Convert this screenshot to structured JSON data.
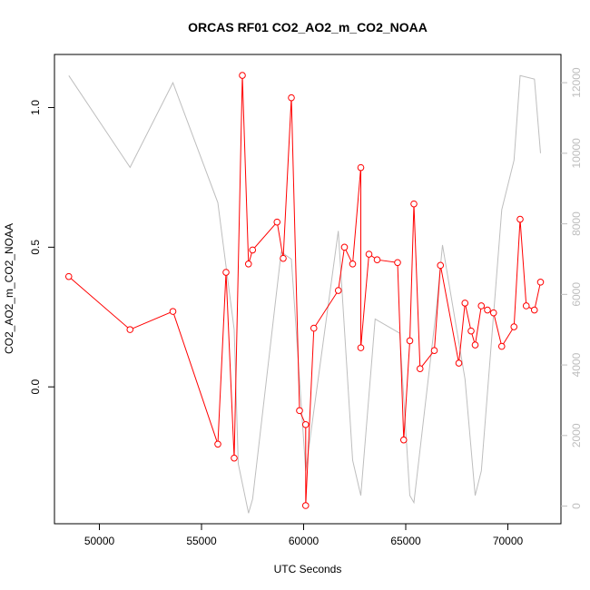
{
  "chart_data": {
    "type": "line",
    "title": "ORCAS RF01 CO2_AO2_m_CO2_NOAA",
    "xlabel": "UTC Seconds",
    "ylabel": "CO2_AO2_m_CO2_NOAA",
    "xlim": [
      47800,
      72600
    ],
    "ylim": [
      -0.49,
      1.19
    ],
    "y2lim": [
      -500,
      12800
    ],
    "x_ticks": [
      50000,
      55000,
      60000,
      65000,
      70000
    ],
    "y_ticks": [
      0.0,
      0.5,
      1.0
    ],
    "y2_ticks": [
      0,
      2000,
      4000,
      6000,
      8000,
      10000,
      12000
    ],
    "colors": {
      "primary": "#ff0000",
      "secondary": "#bebebe",
      "axis": "#000000"
    },
    "series": [
      {
        "axis": "left",
        "style": "line+points",
        "color": "#ff0000",
        "x": [
          48500,
          51500,
          53600,
          55800,
          56200,
          56600,
          57000,
          57300,
          57500,
          58700,
          59000,
          59400,
          59800,
          60100,
          60100,
          60500,
          61700,
          62000,
          62400,
          62800,
          62800,
          63200,
          63600,
          64600,
          64900,
          65200,
          65400,
          65700,
          66400,
          66700,
          67600,
          67900,
          68200,
          68400,
          68700,
          69000,
          69300,
          69700,
          70300,
          70600,
          70900,
          71300,
          71600
        ],
        "y": [
          0.395,
          0.205,
          0.27,
          -0.205,
          0.41,
          -0.255,
          1.115,
          0.44,
          0.49,
          0.59,
          0.46,
          1.035,
          -0.085,
          -0.135,
          -0.425,
          0.21,
          0.345,
          0.5,
          0.44,
          0.785,
          0.14,
          0.475,
          0.455,
          0.445,
          -0.19,
          0.165,
          0.655,
          0.065,
          0.13,
          0.435,
          0.085,
          0.3,
          0.2,
          0.15,
          0.29,
          0.275,
          0.265,
          0.145,
          0.215,
          0.6,
          0.29,
          0.275,
          0.375
        ]
      },
      {
        "axis": "right",
        "style": "line",
        "color": "#bebebe",
        "x": [
          48500,
          51500,
          53600,
          55800,
          56600,
          56800,
          57300,
          57500,
          58900,
          59400,
          60100,
          61700,
          62400,
          62800,
          63500,
          64700,
          65200,
          65400,
          66500,
          66800,
          67900,
          68400,
          68700,
          69700,
          70300,
          70600,
          71300,
          71600
        ],
        "y": [
          12200,
          9600,
          12000,
          8600,
          5000,
          1200,
          -200,
          200,
          7200,
          7000,
          1000,
          7800,
          1300,
          300,
          5300,
          4900,
          300,
          100,
          5600,
          7400,
          3600,
          300,
          1000,
          8400,
          9800,
          12200,
          12100,
          10000
        ]
      }
    ]
  }
}
